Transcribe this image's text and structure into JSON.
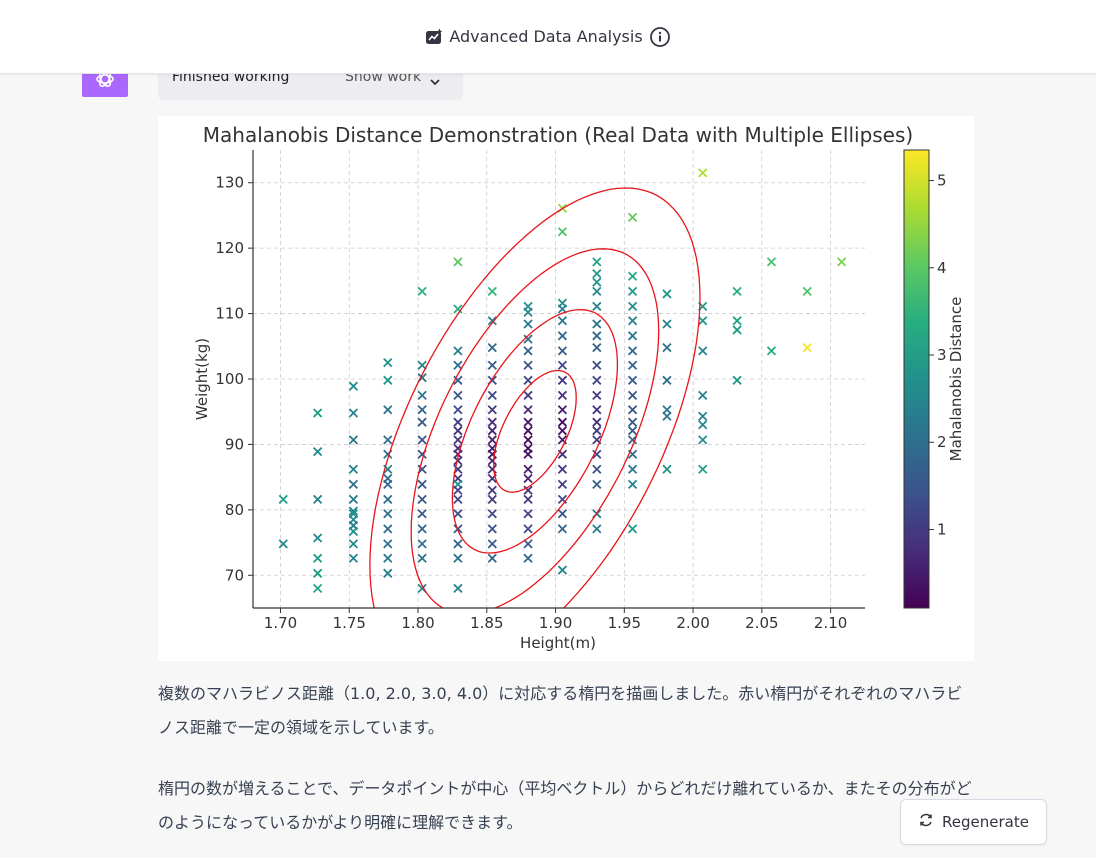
{
  "header": {
    "title": "Advanced Data Analysis",
    "left_icon": "data-analysis-icon",
    "right_icon": "info-icon"
  },
  "message": {
    "avatar_icon": "openai-logo-icon",
    "work_status": "Finished working",
    "show_work_label": "Show work",
    "paragraph1": "複数のマハラビノス距離（1.0, 2.0, 3.0, 4.0）に対応する楕円を描画しました。赤い楕円がそれぞれのマハラビノス距離で一定の領域を示しています。",
    "paragraph2": "楕円の数が増えることで、データポイントが中心（平均ベクトル）からどれだけ離れているか、またその分布がどのようになっているかがより明確に理解できます。"
  },
  "regenerate": {
    "label": "Regenerate",
    "icon": "refresh-icon"
  },
  "colors": {
    "accent": "#ab68ff",
    "ellipse": "#e8141b",
    "grid": "#cccccc"
  },
  "chart_data": {
    "type": "scatter",
    "title": "Mahalanobis Distance Demonstration (Real Data with Multiple Ellipses)",
    "xlabel": "Height(m)",
    "ylabel": "Weight(kg)",
    "colorbar_label": "Mahalanobis Distance",
    "xlim": [
      1.68,
      2.125
    ],
    "ylim": [
      65,
      135
    ],
    "xticks": [
      "1.70",
      "1.75",
      "1.80",
      "1.85",
      "1.90",
      "1.95",
      "2.00",
      "2.05",
      "2.10"
    ],
    "yticks": [
      70,
      80,
      90,
      100,
      110,
      120,
      130
    ],
    "colorbar_ticks": [
      1,
      2,
      3,
      4,
      5
    ],
    "colorbar_range": [
      0.1,
      5.35
    ],
    "marker": "x",
    "grid": true,
    "colormap": "viridis",
    "ellipses": {
      "center": [
        1.885,
        92
      ],
      "distances": [
        1.0,
        2.0,
        3.0,
        4.0
      ],
      "color": "#e8141b"
    },
    "points": [
      [
        1.702,
        81.6,
        3.0
      ],
      [
        1.702,
        74.8,
        2.6
      ],
      [
        1.727,
        94.8,
        3.0
      ],
      [
        1.727,
        88.9,
        2.6
      ],
      [
        1.727,
        81.6,
        2.4
      ],
      [
        1.727,
        75.7,
        2.6
      ],
      [
        1.727,
        72.6,
        2.9
      ],
      [
        1.727,
        70.3,
        3.0
      ],
      [
        1.727,
        68.0,
        3.2
      ],
      [
        1.753,
        98.9,
        2.7
      ],
      [
        1.753,
        94.8,
        2.4
      ],
      [
        1.753,
        90.7,
        2.2
      ],
      [
        1.753,
        86.2,
        2.5
      ],
      [
        1.753,
        83.9,
        2.1
      ],
      [
        1.753,
        81.6,
        2.3
      ],
      [
        1.753,
        79.8,
        2.5
      ],
      [
        1.753,
        79.4,
        2.7
      ],
      [
        1.753,
        78.5,
        2.6
      ],
      [
        1.753,
        77.6,
        2.3
      ],
      [
        1.753,
        76.7,
        2.8
      ],
      [
        1.753,
        74.8,
        2.5
      ],
      [
        1.753,
        72.6,
        2.5
      ],
      [
        1.778,
        102.5,
        2.8
      ],
      [
        1.778,
        99.8,
        2.8
      ],
      [
        1.778,
        95.3,
        2.1
      ],
      [
        1.778,
        90.7,
        2.0
      ],
      [
        1.778,
        88.5,
        2.1
      ],
      [
        1.778,
        86.2,
        2.3
      ],
      [
        1.778,
        84.8,
        1.9
      ],
      [
        1.778,
        83.9,
        1.9
      ],
      [
        1.778,
        81.6,
        1.9
      ],
      [
        1.778,
        79.4,
        2.0
      ],
      [
        1.778,
        77.1,
        1.9
      ],
      [
        1.778,
        74.8,
        2.0
      ],
      [
        1.778,
        72.6,
        2.2
      ],
      [
        1.778,
        70.3,
        2.4
      ],
      [
        1.803,
        113.4,
        3.4
      ],
      [
        1.803,
        102.1,
        2.5
      ],
      [
        1.803,
        100.2,
        2.2
      ],
      [
        1.803,
        97.5,
        2.1
      ],
      [
        1.803,
        95.3,
        1.8
      ],
      [
        1.803,
        93.4,
        1.6
      ],
      [
        1.803,
        90.7,
        1.5
      ],
      [
        1.803,
        88.5,
        1.4
      ],
      [
        1.803,
        86.2,
        1.4
      ],
      [
        1.803,
        83.9,
        1.5
      ],
      [
        1.803,
        81.6,
        1.5
      ],
      [
        1.803,
        79.4,
        1.6
      ],
      [
        1.803,
        77.1,
        1.8
      ],
      [
        1.803,
        74.8,
        2.0
      ],
      [
        1.803,
        72.6,
        2.1
      ],
      [
        1.803,
        68.0,
        2.6
      ],
      [
        1.829,
        117.9,
        4.0
      ],
      [
        1.829,
        110.7,
        3.3
      ],
      [
        1.829,
        104.3,
        2.3
      ],
      [
        1.829,
        102.1,
        1.9
      ],
      [
        1.829,
        99.8,
        1.6
      ],
      [
        1.829,
        97.5,
        1.5
      ],
      [
        1.829,
        95.3,
        1.3
      ],
      [
        1.829,
        93.4,
        1.1
      ],
      [
        1.829,
        92.1,
        0.9
      ],
      [
        1.829,
        90.7,
        0.9
      ],
      [
        1.829,
        89.4,
        0.8
      ],
      [
        1.829,
        88.5,
        0.8
      ],
      [
        1.829,
        87.5,
        0.9
      ],
      [
        1.829,
        86.2,
        0.9
      ],
      [
        1.829,
        84.8,
        1.0
      ],
      [
        1.829,
        83.9,
        2.8
      ],
      [
        1.829,
        83.0,
        1.1
      ],
      [
        1.829,
        81.6,
        1.2
      ],
      [
        1.829,
        79.4,
        1.3
      ],
      [
        1.829,
        77.1,
        1.5
      ],
      [
        1.829,
        74.8,
        1.7
      ],
      [
        1.829,
        72.6,
        2.0
      ],
      [
        1.829,
        68.0,
        2.4
      ],
      [
        1.854,
        113.4,
        3.5
      ],
      [
        1.854,
        108.9,
        2.4
      ],
      [
        1.854,
        104.8,
        1.9
      ],
      [
        1.854,
        102.1,
        1.6
      ],
      [
        1.854,
        99.8,
        1.4
      ],
      [
        1.854,
        97.5,
        1.2
      ],
      [
        1.854,
        95.3,
        1.0
      ],
      [
        1.854,
        93.4,
        0.8
      ],
      [
        1.854,
        92.1,
        0.6
      ],
      [
        1.854,
        90.7,
        0.5
      ],
      [
        1.854,
        89.4,
        0.5
      ],
      [
        1.854,
        88.5,
        0.5
      ],
      [
        1.854,
        87.5,
        0.6
      ],
      [
        1.854,
        86.2,
        0.7
      ],
      [
        1.854,
        84.8,
        0.8
      ],
      [
        1.854,
        83.0,
        0.9
      ],
      [
        1.854,
        81.6,
        1.0
      ],
      [
        1.854,
        79.4,
        1.2
      ],
      [
        1.854,
        77.1,
        1.4
      ],
      [
        1.854,
        74.8,
        1.6
      ],
      [
        1.854,
        72.6,
        1.8
      ],
      [
        1.88,
        111.1,
        2.7
      ],
      [
        1.88,
        110.2,
        2.5
      ],
      [
        1.88,
        108.4,
        2.2
      ],
      [
        1.88,
        106.1,
        2.0
      ],
      [
        1.88,
        104.3,
        1.7
      ],
      [
        1.88,
        102.1,
        1.5
      ],
      [
        1.88,
        99.8,
        1.2
      ],
      [
        1.88,
        97.5,
        0.9
      ],
      [
        1.88,
        95.3,
        0.7
      ],
      [
        1.88,
        93.4,
        0.5
      ],
      [
        1.88,
        92.1,
        0.3
      ],
      [
        1.88,
        90.7,
        0.2
      ],
      [
        1.88,
        89.4,
        0.2
      ],
      [
        1.88,
        88.5,
        0.3
      ],
      [
        1.88,
        86.2,
        0.5
      ],
      [
        1.88,
        84.8,
        0.6
      ],
      [
        1.88,
        83.0,
        0.8
      ],
      [
        1.88,
        81.6,
        0.9
      ],
      [
        1.88,
        79.4,
        1.1
      ],
      [
        1.88,
        77.1,
        1.3
      ],
      [
        1.88,
        74.8,
        1.6
      ],
      [
        1.88,
        72.6,
        1.8
      ],
      [
        1.905,
        126.1,
        4.5
      ],
      [
        1.905,
        122.5,
        3.9
      ],
      [
        1.905,
        111.6,
        2.6
      ],
      [
        1.905,
        110.7,
        2.4
      ],
      [
        1.905,
        108.9,
        2.1
      ],
      [
        1.905,
        106.6,
        1.9
      ],
      [
        1.905,
        104.3,
        1.6
      ],
      [
        1.905,
        102.1,
        1.3
      ],
      [
        1.905,
        99.8,
        1.0
      ],
      [
        1.905,
        97.5,
        0.8
      ],
      [
        1.905,
        95.3,
        0.5
      ],
      [
        1.905,
        93.4,
        0.3
      ],
      [
        1.905,
        92.1,
        0.4
      ],
      [
        1.905,
        90.7,
        0.5
      ],
      [
        1.905,
        88.5,
        0.7
      ],
      [
        1.905,
        86.2,
        0.9
      ],
      [
        1.905,
        83.9,
        1.1
      ],
      [
        1.905,
        81.6,
        1.3
      ],
      [
        1.905,
        79.4,
        1.5
      ],
      [
        1.905,
        77.1,
        1.8
      ],
      [
        1.905,
        70.8,
        2.6
      ],
      [
        1.93,
        117.9,
        3.1
      ],
      [
        1.93,
        116.1,
        2.9
      ],
      [
        1.93,
        114.8,
        2.8
      ],
      [
        1.93,
        113.4,
        2.6
      ],
      [
        1.93,
        111.1,
        2.4
      ],
      [
        1.93,
        108.4,
        2.1
      ],
      [
        1.93,
        106.6,
        1.9
      ],
      [
        1.93,
        104.8,
        1.7
      ],
      [
        1.93,
        102.1,
        1.4
      ],
      [
        1.93,
        99.8,
        1.2
      ],
      [
        1.93,
        97.5,
        1.0
      ],
      [
        1.93,
        95.3,
        0.9
      ],
      [
        1.93,
        93.4,
        0.9
      ],
      [
        1.93,
        92.1,
        1.0
      ],
      [
        1.93,
        90.7,
        1.1
      ],
      [
        1.93,
        88.5,
        1.3
      ],
      [
        1.93,
        86.2,
        1.5
      ],
      [
        1.93,
        83.9,
        1.7
      ],
      [
        1.93,
        79.4,
        2.2
      ],
      [
        1.93,
        77.1,
        2.4
      ],
      [
        1.956,
        124.7,
        4.1
      ],
      [
        1.956,
        115.7,
        3.2
      ],
      [
        1.956,
        113.4,
        2.9
      ],
      [
        1.956,
        111.1,
        2.7
      ],
      [
        1.956,
        108.9,
        2.4
      ],
      [
        1.956,
        106.6,
        2.2
      ],
      [
        1.956,
        104.3,
        1.9
      ],
      [
        1.956,
        102.1,
        1.7
      ],
      [
        1.956,
        99.8,
        1.6
      ],
      [
        1.956,
        97.5,
        1.5
      ],
      [
        1.956,
        95.3,
        1.5
      ],
      [
        1.956,
        93.4,
        1.6
      ],
      [
        1.956,
        92.1,
        1.7
      ],
      [
        1.956,
        90.7,
        1.8
      ],
      [
        1.956,
        88.5,
        2.0
      ],
      [
        1.956,
        86.2,
        2.2
      ],
      [
        1.956,
        83.9,
        2.4
      ],
      [
        1.956,
        77.1,
        3.0
      ],
      [
        1.981,
        113.0,
        2.9
      ],
      [
        1.981,
        108.4,
        2.4
      ],
      [
        1.981,
        104.8,
        2.1
      ],
      [
        1.981,
        99.8,
        2.0
      ],
      [
        1.981,
        95.3,
        2.2
      ],
      [
        1.981,
        94.3,
        2.2
      ],
      [
        1.981,
        86.2,
        2.8
      ],
      [
        2.007,
        131.5,
        4.7
      ],
      [
        2.007,
        111.1,
        3.0
      ],
      [
        2.007,
        108.9,
        2.8
      ],
      [
        2.007,
        104.3,
        2.5
      ],
      [
        2.007,
        97.5,
        2.4
      ],
      [
        2.007,
        94.3,
        2.5
      ],
      [
        2.007,
        93.0,
        2.6
      ],
      [
        2.007,
        90.7,
        2.8
      ],
      [
        2.007,
        86.2,
        3.1
      ],
      [
        2.032,
        113.4,
        3.4
      ],
      [
        2.032,
        108.9,
        3.0
      ],
      [
        2.032,
        107.5,
        3.0
      ],
      [
        2.032,
        99.8,
        2.9
      ],
      [
        2.057,
        117.9,
        3.8
      ],
      [
        2.057,
        104.3,
        3.3
      ],
      [
        2.083,
        113.4,
        3.9
      ],
      [
        2.083,
        104.8,
        5.3
      ],
      [
        2.108,
        117.9,
        4.3
      ]
    ]
  }
}
